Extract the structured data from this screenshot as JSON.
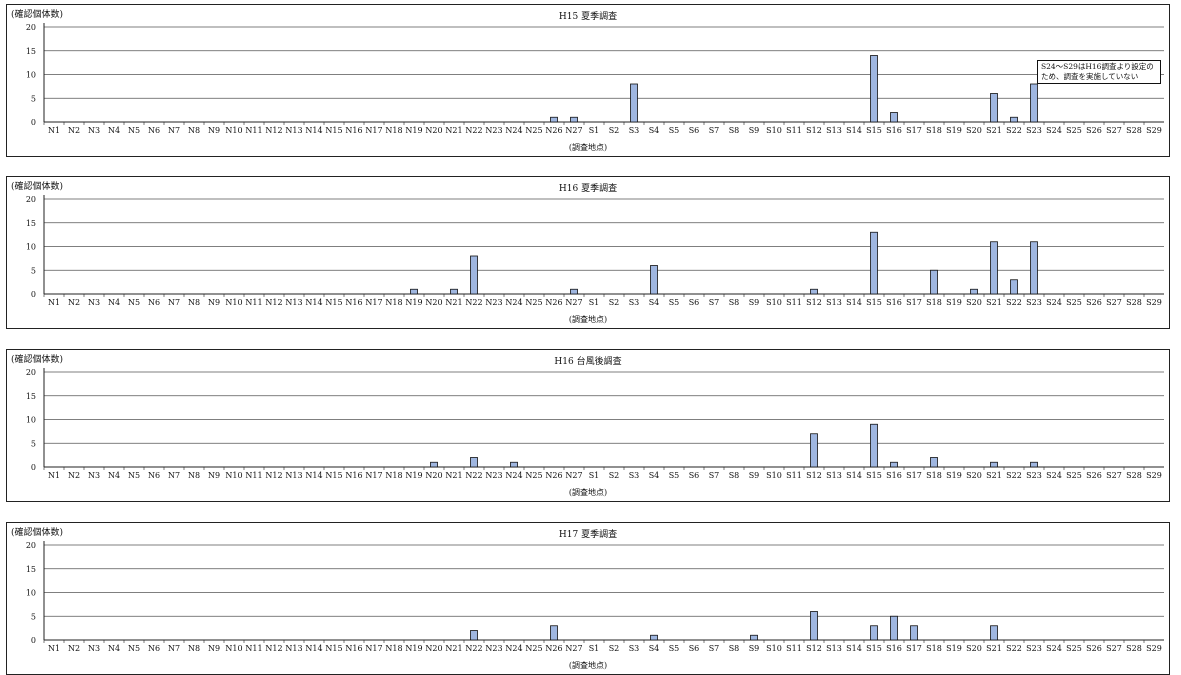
{
  "chart_data": [
    {
      "type": "bar",
      "title": "H15 夏季調査",
      "ylabel": "(確認個体数)",
      "xlabel": "(調査地点)",
      "ylim": [
        0,
        20
      ],
      "yticks": [
        "0",
        "5",
        "10",
        "15",
        "20"
      ],
      "categories": [
        "N1",
        "N2",
        "N3",
        "N4",
        "N5",
        "N6",
        "N7",
        "N8",
        "N9",
        "N10",
        "N11",
        "N12",
        "N13",
        "N14",
        "N15",
        "N16",
        "N17",
        "N18",
        "N19",
        "N20",
        "N21",
        "N22",
        "N23",
        "N24",
        "N25",
        "N26",
        "N27",
        "S1",
        "S2",
        "S3",
        "S4",
        "S5",
        "S6",
        "S7",
        "S8",
        "S9",
        "S10",
        "S11",
        "S12",
        "S13",
        "S14",
        "S15",
        "S16",
        "S17",
        "S18",
        "S19",
        "S20",
        "S21",
        "S22",
        "S23",
        "S24",
        "S25",
        "S26",
        "S27",
        "S28",
        "S29"
      ],
      "values": [
        0,
        0,
        0,
        0,
        0,
        0,
        0,
        0,
        0,
        0,
        0,
        0,
        0,
        0,
        0,
        0,
        0,
        0,
        0,
        0,
        0,
        0,
        0,
        0,
        0,
        1,
        1,
        0,
        0,
        8,
        0,
        0,
        0,
        0,
        0,
        0,
        0,
        0,
        0,
        0,
        0,
        14,
        2,
        0,
        0,
        0,
        0,
        6,
        1,
        8,
        0,
        0,
        0,
        0,
        0,
        0
      ],
      "annotation": "S24～S29はH16調査より設定のため、調査を実施していない",
      "grid": true,
      "bar_color": "#9fb6e0"
    },
    {
      "type": "bar",
      "title": "H16 夏季調査",
      "ylabel": "(確認個体数)",
      "xlabel": "(調査地点)",
      "ylim": [
        0,
        20
      ],
      "yticks": [
        "0",
        "5",
        "10",
        "15",
        "20"
      ],
      "categories": [
        "N1",
        "N2",
        "N3",
        "N4",
        "N5",
        "N6",
        "N7",
        "N8",
        "N9",
        "N10",
        "N11",
        "N12",
        "N13",
        "N14",
        "N15",
        "N16",
        "N17",
        "N18",
        "N19",
        "N20",
        "N21",
        "N22",
        "N23",
        "N24",
        "N25",
        "N26",
        "N27",
        "S1",
        "S2",
        "S3",
        "S4",
        "S5",
        "S6",
        "S7",
        "S8",
        "S9",
        "S10",
        "S11",
        "S12",
        "S13",
        "S14",
        "S15",
        "S16",
        "S17",
        "S18",
        "S19",
        "S20",
        "S21",
        "S22",
        "S23",
        "S24",
        "S25",
        "S26",
        "S27",
        "S28",
        "S29"
      ],
      "values": [
        0,
        0,
        0,
        0,
        0,
        0,
        0,
        0,
        0,
        0,
        0,
        0,
        0,
        0,
        0,
        0,
        0,
        0,
        1,
        0,
        1,
        8,
        0,
        0,
        0,
        0,
        1,
        0,
        0,
        0,
        6,
        0,
        0,
        0,
        0,
        0,
        0,
        0,
        1,
        0,
        0,
        13,
        0,
        0,
        5,
        0,
        1,
        11,
        3,
        11,
        0,
        0,
        0,
        0,
        0,
        0
      ],
      "grid": true,
      "bar_color": "#9fb6e0"
    },
    {
      "type": "bar",
      "title": "H16 台風後調査",
      "ylabel": "(確認個体数)",
      "xlabel": "(調査地点)",
      "ylim": [
        0,
        20
      ],
      "yticks": [
        "0",
        "5",
        "10",
        "15",
        "20"
      ],
      "categories": [
        "N1",
        "N2",
        "N3",
        "N4",
        "N5",
        "N6",
        "N7",
        "N8",
        "N9",
        "N10",
        "N11",
        "N12",
        "N13",
        "N14",
        "N15",
        "N16",
        "N17",
        "N18",
        "N19",
        "N20",
        "N21",
        "N22",
        "N23",
        "N24",
        "N25",
        "N26",
        "N27",
        "S1",
        "S2",
        "S3",
        "S4",
        "S5",
        "S6",
        "S7",
        "S8",
        "S9",
        "S10",
        "S11",
        "S12",
        "S13",
        "S14",
        "S15",
        "S16",
        "S17",
        "S18",
        "S19",
        "S20",
        "S21",
        "S22",
        "S23",
        "S24",
        "S25",
        "S26",
        "S27",
        "S28",
        "S29"
      ],
      "values": [
        0,
        0,
        0,
        0,
        0,
        0,
        0,
        0,
        0,
        0,
        0,
        0,
        0,
        0,
        0,
        0,
        0,
        0,
        0,
        1,
        0,
        2,
        0,
        1,
        0,
        0,
        0,
        0,
        0,
        0,
        0,
        0,
        0,
        0,
        0,
        0,
        0,
        0,
        7,
        0,
        0,
        9,
        1,
        0,
        2,
        0,
        0,
        1,
        0,
        1,
        0,
        0,
        0,
        0,
        0,
        0
      ],
      "grid": true,
      "bar_color": "#9fb6e0"
    },
    {
      "type": "bar",
      "title": "H17 夏季調査",
      "ylabel": "(確認個体数)",
      "xlabel": "(調査地点)",
      "ylim": [
        0,
        20
      ],
      "yticks": [
        "0",
        "5",
        "10",
        "15",
        "20"
      ],
      "categories": [
        "N1",
        "N2",
        "N3",
        "N4",
        "N5",
        "N6",
        "N7",
        "N8",
        "N9",
        "N10",
        "N11",
        "N12",
        "N13",
        "N14",
        "N15",
        "N16",
        "N17",
        "N18",
        "N19",
        "N20",
        "N21",
        "N22",
        "N23",
        "N24",
        "N25",
        "N26",
        "N27",
        "S1",
        "S2",
        "S3",
        "S4",
        "S5",
        "S6",
        "S7",
        "S8",
        "S9",
        "S10",
        "S11",
        "S12",
        "S13",
        "S14",
        "S15",
        "S16",
        "S17",
        "S18",
        "S19",
        "S20",
        "S21",
        "S22",
        "S23",
        "S24",
        "S25",
        "S26",
        "S27",
        "S28",
        "S29"
      ],
      "values": [
        0,
        0,
        0,
        0,
        0,
        0,
        0,
        0,
        0,
        0,
        0,
        0,
        0,
        0,
        0,
        0,
        0,
        0,
        0,
        0,
        0,
        2,
        0,
        0,
        0,
        3,
        0,
        0,
        0,
        0,
        1,
        0,
        0,
        0,
        0,
        1,
        0,
        0,
        6,
        0,
        0,
        3,
        5,
        3,
        0,
        0,
        0,
        3,
        0,
        0,
        0,
        0,
        0,
        0,
        0,
        0
      ],
      "grid": true,
      "bar_color": "#9fb6e0"
    }
  ]
}
